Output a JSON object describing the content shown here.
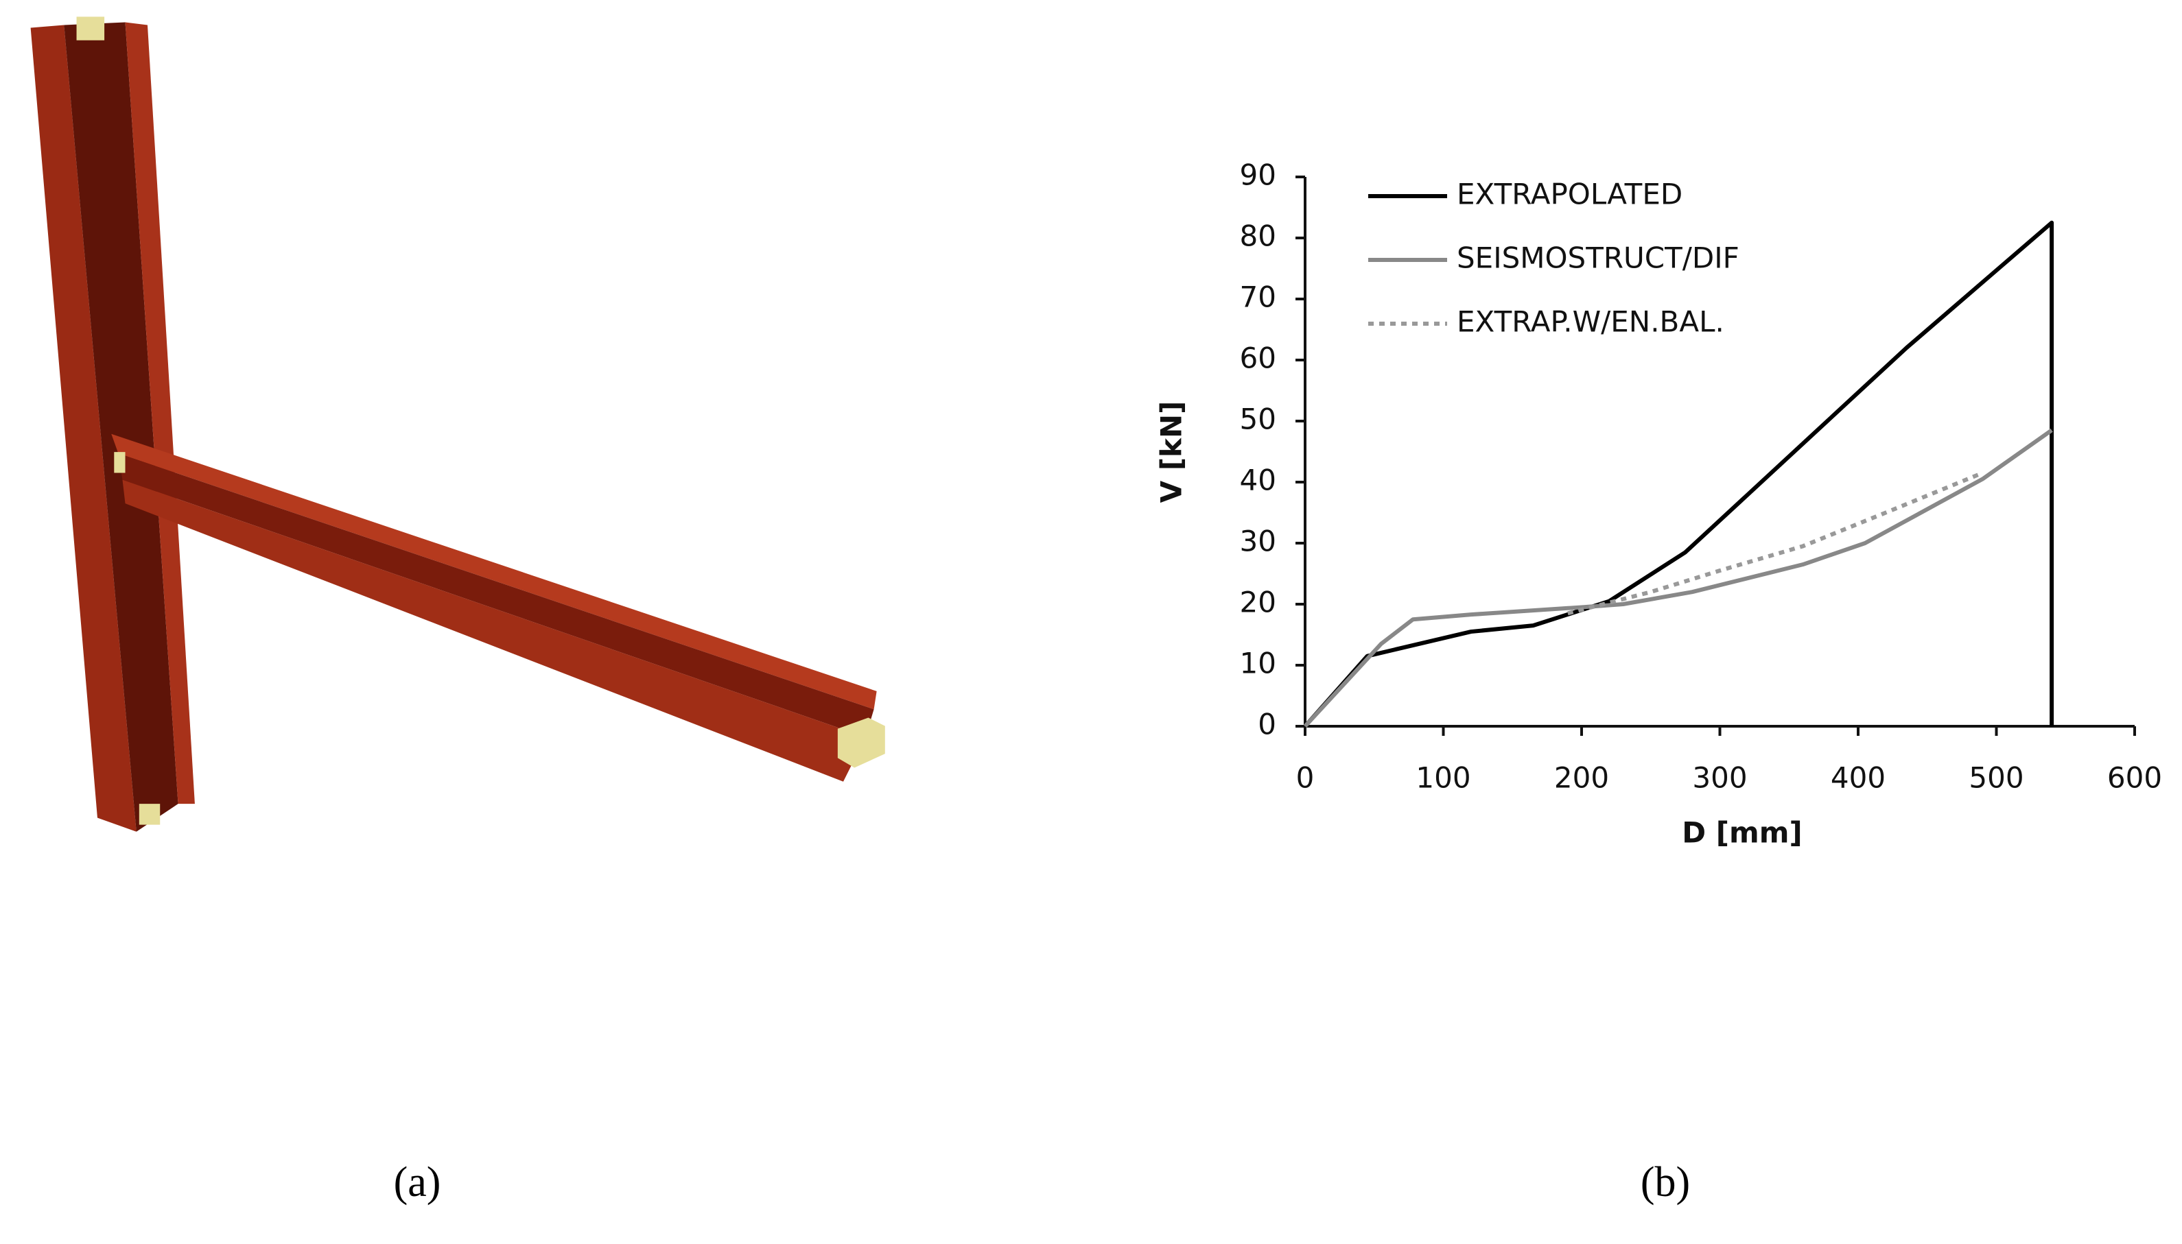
{
  "panels": [
    "(a)",
    "(b)"
  ],
  "chart_data": {
    "type": "line",
    "x_label": "D [mm]",
    "y_label": "V [kN]",
    "xlim": [
      0,
      600
    ],
    "xticks": [
      0,
      100,
      200,
      300,
      400,
      500,
      600
    ],
    "ylim": [
      0,
      90
    ],
    "yticks": [
      0,
      10,
      20,
      30,
      40,
      50,
      60,
      70,
      80,
      90
    ],
    "legend": "upper left",
    "series": [
      {
        "name": "EXTRAPOLATED",
        "color": "#000000",
        "dash": "solid",
        "x": [
          0,
          45,
          120,
          165,
          220,
          275,
          435,
          540,
          540
        ],
        "values": [
          0,
          11.5,
          15.5,
          16.5,
          20.5,
          28.5,
          62,
          82.5,
          0
        ]
      },
      {
        "name": "SEISMOSTRUCT/DIF",
        "color": "#888888",
        "dash": "solid",
        "x": [
          0,
          55,
          78,
          120,
          200,
          230,
          280,
          360,
          405,
          490,
          540
        ],
        "values": [
          0,
          13.5,
          17.5,
          18.3,
          19.5,
          20,
          22,
          26.5,
          30,
          40.5,
          48.5
        ]
      },
      {
        "name": "EXTRAP.W/EN.BAL.",
        "color": "#999999",
        "dash": "dotted",
        "x": [
          190,
          250,
          300,
          360,
          420,
          490
        ],
        "values": [
          18.5,
          22,
          25.5,
          29.5,
          35,
          41.5
        ]
      }
    ]
  }
}
